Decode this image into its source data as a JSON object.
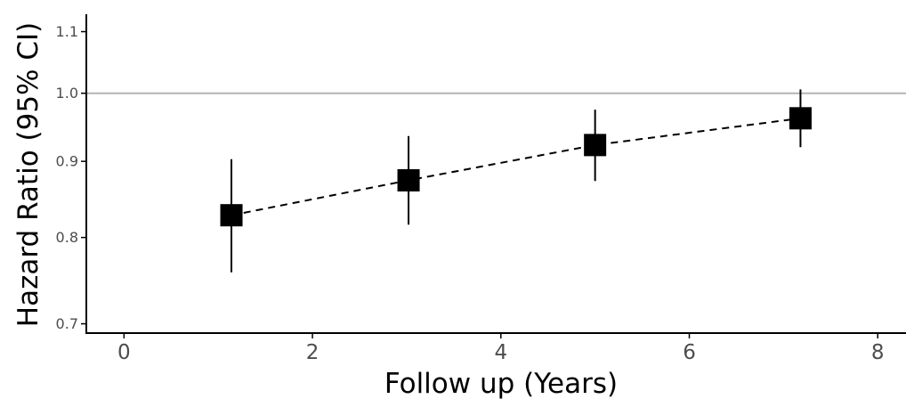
{
  "chart_data": {
    "type": "scatter",
    "xlabel": "Follow up (Years)",
    "ylabel": "Hazard Ratio (95% CI)",
    "xlim": [
      -0.4,
      8.3
    ],
    "ylim": [
      0.69,
      1.13
    ],
    "y_scale": "log",
    "grid": false,
    "x_ticks": [
      0,
      2,
      4,
      6,
      8
    ],
    "y_ticks": [
      0.7,
      0.8,
      0.9,
      1.0,
      1.1
    ],
    "x_tick_labels": [
      "0",
      "2",
      "4",
      "6",
      "8"
    ],
    "y_tick_labels": [
      "0.7",
      "0.8",
      "0.9",
      "1.0",
      "1.1"
    ],
    "reference_line": {
      "y": 1.0,
      "color": "#b3b3b3"
    },
    "trend_line_style": "dashed",
    "points": [
      {
        "x": 1.14,
        "y": 0.828,
        "lower": 0.758,
        "upper": 0.903
      },
      {
        "x": 3.02,
        "y": 0.874,
        "lower": 0.816,
        "upper": 0.936
      },
      {
        "x": 5.0,
        "y": 0.923,
        "lower": 0.873,
        "upper": 0.975
      },
      {
        "x": 7.18,
        "y": 0.962,
        "lower": 0.92,
        "upper": 1.006
      }
    ],
    "colors": {
      "marker": "#000000",
      "axis": "#000000",
      "tick_text": "#4d4d4d"
    }
  }
}
